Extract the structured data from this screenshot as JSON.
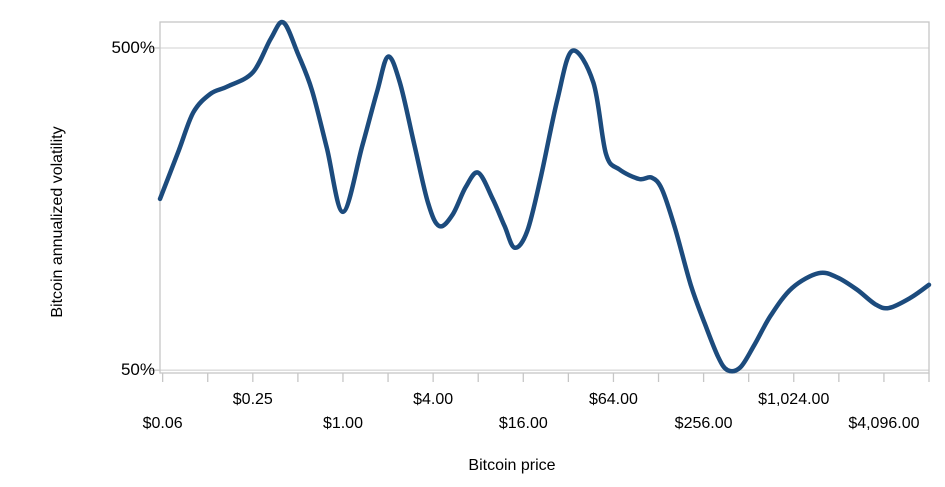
{
  "chart_data": {
    "type": "line",
    "title": "",
    "xlabel": "Bitcoin price",
    "ylabel": "Bitcoin annualized volatility",
    "x_scale": "log",
    "y_scale": "log",
    "xlim": [
      0.06,
      8192
    ],
    "ylim": [
      49,
      602
    ],
    "grid": "horizontal gridlines at labeled y ticks only",
    "legend_position": "none",
    "x_ticks": [
      {
        "label": "$0.06",
        "value": 0.0625,
        "row": "lower"
      },
      {
        "label": "$0.25",
        "value": 0.25,
        "row": "upper"
      },
      {
        "label": "$1.00",
        "value": 1,
        "row": "lower"
      },
      {
        "label": "$4.00",
        "value": 4,
        "row": "upper"
      },
      {
        "label": "$16.00",
        "value": 16,
        "row": "lower"
      },
      {
        "label": "$64.00",
        "value": 64,
        "row": "upper"
      },
      {
        "label": "$256.00",
        "value": 256,
        "row": "lower"
      },
      {
        "label": "$1,024.00",
        "value": 1024,
        "row": "upper"
      },
      {
        "label": "$4,096.00",
        "value": 4096,
        "row": "lower"
      }
    ],
    "y_ticks": [
      {
        "label": "500%",
        "value": 500
      },
      {
        "label": "50%",
        "value": 50
      }
    ],
    "x_minor_tick_values": [
      0.0625,
      0.125,
      0.25,
      0.5,
      1,
      2,
      4,
      8,
      16,
      32,
      64,
      128,
      256,
      512,
      1024,
      2048,
      4096,
      8192
    ],
    "series": [
      {
        "name": "Bitcoin annualized volatility",
        "color": "#1c4b7d",
        "points_price_usd_volatility_pct": [
          [
            0.06,
            170
          ],
          [
            0.08,
            240
          ],
          [
            0.1,
            315
          ],
          [
            0.13,
            360
          ],
          [
            0.17,
            380
          ],
          [
            0.25,
            420
          ],
          [
            0.33,
            535
          ],
          [
            0.4,
            600
          ],
          [
            0.5,
            480
          ],
          [
            0.62,
            370
          ],
          [
            0.78,
            245
          ],
          [
            1,
            155
          ],
          [
            1.35,
            250
          ],
          [
            1.7,
            370
          ],
          [
            2,
            470
          ],
          [
            2.4,
            390
          ],
          [
            3,
            250
          ],
          [
            3.7,
            165
          ],
          [
            4.4,
            140
          ],
          [
            5.4,
            152
          ],
          [
            6.6,
            185
          ],
          [
            8,
            205
          ],
          [
            10,
            170
          ],
          [
            12,
            140
          ],
          [
            14,
            120
          ],
          [
            17,
            135
          ],
          [
            21,
            200
          ],
          [
            27,
            345
          ],
          [
            34,
            490
          ],
          [
            47,
            390
          ],
          [
            57,
            235
          ],
          [
            70,
            210
          ],
          [
            95,
            196
          ],
          [
            115,
            198
          ],
          [
            135,
            182
          ],
          [
            165,
            138
          ],
          [
            210,
            92
          ],
          [
            260,
            70
          ],
          [
            320,
            55
          ],
          [
            370,
            50
          ],
          [
            450,
            51
          ],
          [
            560,
            60
          ],
          [
            720,
            74
          ],
          [
            1000,
            90
          ],
          [
            1500,
            100
          ],
          [
            2000,
            97
          ],
          [
            2700,
            89
          ],
          [
            3600,
            80
          ],
          [
            4450,
            78
          ],
          [
            6200,
            84
          ],
          [
            8192,
            92
          ]
        ]
      }
    ],
    "colors": {
      "line": "#1c4b7d",
      "grid": "#d9d9d9",
      "frame": "#c6c6c6",
      "text": "#000000",
      "background": "#ffffff"
    }
  }
}
